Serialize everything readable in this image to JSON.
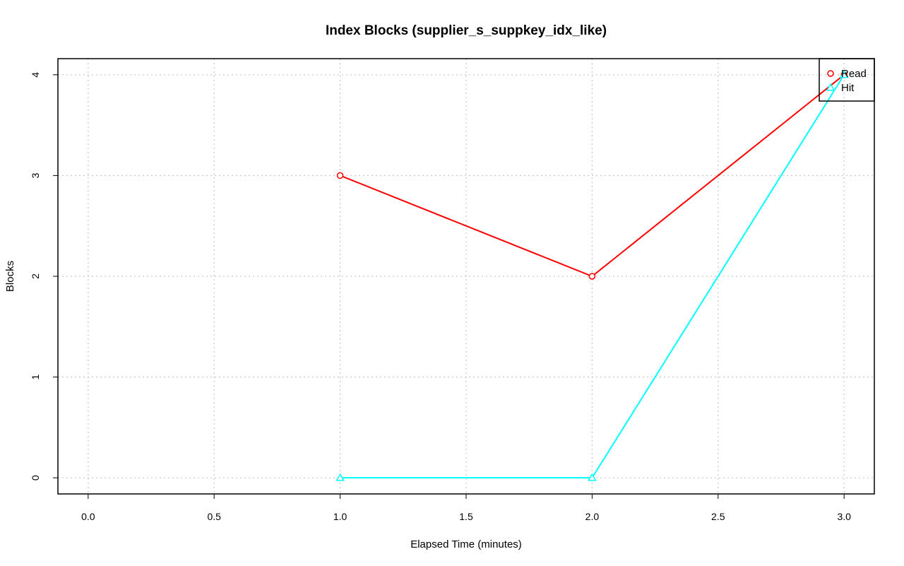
{
  "chart_data": {
    "type": "line",
    "title": "Index Blocks (supplier_s_suppkey_idx_like)",
    "xlabel": "Elapsed Time (minutes)",
    "ylabel": "Blocks",
    "xlim": [
      -0.12,
      3.12
    ],
    "ylim": [
      -0.16,
      4.16
    ],
    "x_ticks": [
      0.0,
      0.5,
      1.0,
      1.5,
      2.0,
      2.5,
      3.0
    ],
    "x_tick_labels": [
      "0.0",
      "0.5",
      "1.0",
      "1.5",
      "2.0",
      "2.5",
      "3.0"
    ],
    "y_ticks": [
      0,
      1,
      2,
      3,
      4
    ],
    "y_tick_labels": [
      "0",
      "1",
      "2",
      "3",
      "4"
    ],
    "grid": true,
    "legend_position": "top-right",
    "x": [
      1.0,
      2.0,
      3.0
    ],
    "series": [
      {
        "name": "Read",
        "values": [
          3,
          2,
          4
        ],
        "color": "#ff0000",
        "marker": "circle"
      },
      {
        "name": "Hit",
        "values": [
          0,
          0,
          4
        ],
        "color": "#00ffff",
        "marker": "triangle"
      }
    ]
  }
}
